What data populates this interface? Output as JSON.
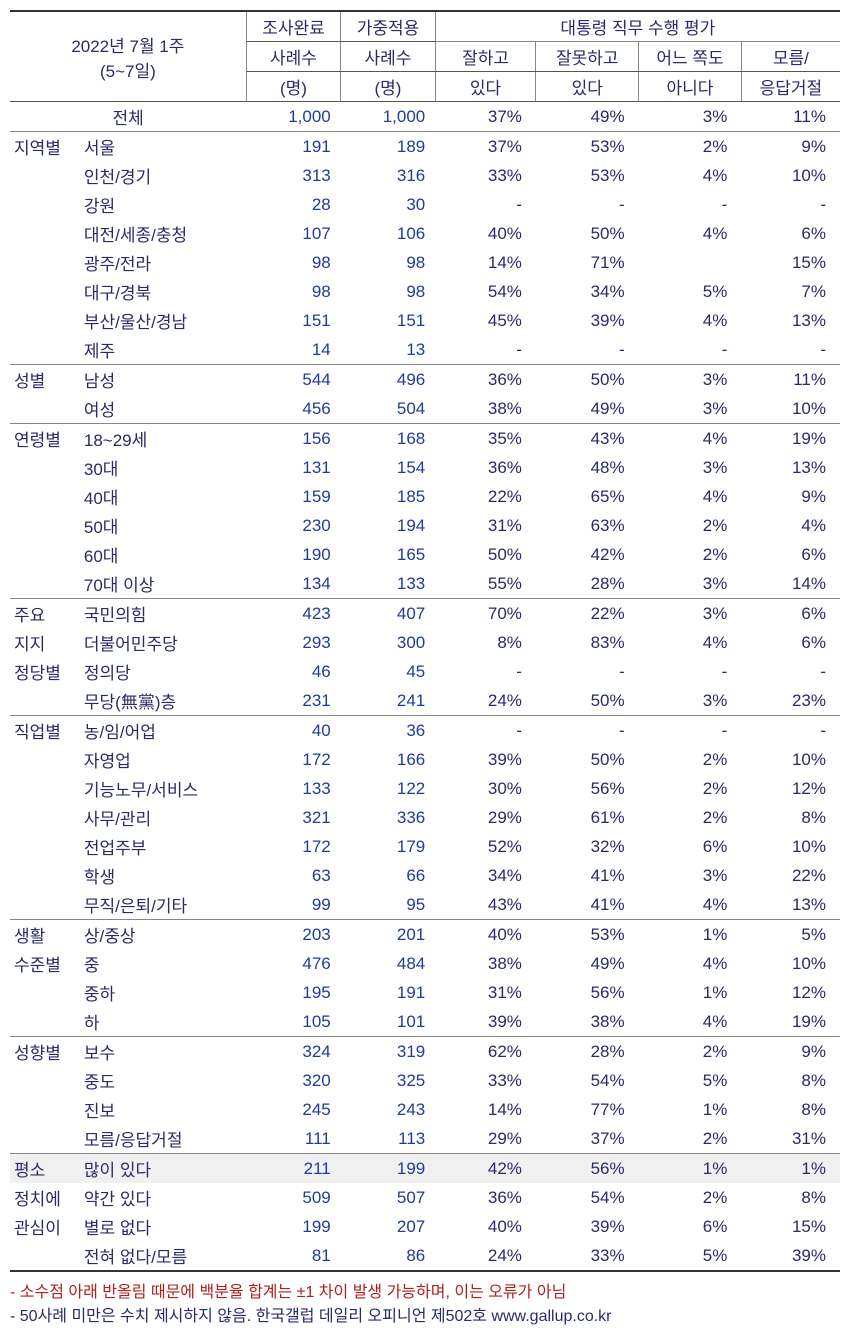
{
  "header": {
    "title_line1": "2022년 7월 1주",
    "title_line2": "(5~7일)",
    "col_n1_l1": "조사완료",
    "col_n1_l2": "사례수",
    "col_n1_l3": "(명)",
    "col_n2_l1": "가중적용",
    "col_n2_l2": "사례수",
    "col_n2_l3": "(명)",
    "pres_eval": "대통령 직무 수행 평가",
    "c1_l1": "잘하고",
    "c1_l2": "있다",
    "c2_l1": "잘못하고",
    "c2_l2": "있다",
    "c3_l1": "어느 쪽도",
    "c3_l2": "아니다",
    "c4_l1": "모름/",
    "c4_l2": "응답거절"
  },
  "total_label": "전체",
  "total": {
    "n1": "1,000",
    "n2": "1,000",
    "p1": "37%",
    "p2": "49%",
    "p3": "3%",
    "p4": "11%"
  },
  "sections": [
    {
      "group": "지역별",
      "rows": [
        {
          "label": "서울",
          "n1": "191",
          "n2": "189",
          "p1": "37%",
          "p2": "53%",
          "p3": "2%",
          "p4": "9%"
        },
        {
          "label": "인천/경기",
          "n1": "313",
          "n2": "316",
          "p1": "33%",
          "p2": "53%",
          "p3": "4%",
          "p4": "10%"
        },
        {
          "label": "강원",
          "n1": "28",
          "n2": "30",
          "p1": "-",
          "p2": "-",
          "p3": "-",
          "p4": "-"
        },
        {
          "label": "대전/세종/충청",
          "n1": "107",
          "n2": "106",
          "p1": "40%",
          "p2": "50%",
          "p3": "4%",
          "p4": "6%"
        },
        {
          "label": "광주/전라",
          "n1": "98",
          "n2": "98",
          "p1": "14%",
          "p2": "71%",
          "p3": "",
          "p4": "15%"
        },
        {
          "label": "대구/경북",
          "n1": "98",
          "n2": "98",
          "p1": "54%",
          "p2": "34%",
          "p3": "5%",
          "p4": "7%"
        },
        {
          "label": "부산/울산/경남",
          "n1": "151",
          "n2": "151",
          "p1": "45%",
          "p2": "39%",
          "p3": "4%",
          "p4": "13%"
        },
        {
          "label": "제주",
          "n1": "14",
          "n2": "13",
          "p1": "-",
          "p2": "-",
          "p3": "-",
          "p4": "-"
        }
      ]
    },
    {
      "group": "성별",
      "rows": [
        {
          "label": "남성",
          "n1": "544",
          "n2": "496",
          "p1": "36%",
          "p2": "50%",
          "p3": "3%",
          "p4": "11%"
        },
        {
          "label": "여성",
          "n1": "456",
          "n2": "504",
          "p1": "38%",
          "p2": "49%",
          "p3": "3%",
          "p4": "10%"
        }
      ]
    },
    {
      "group": "연령별",
      "rows": [
        {
          "label": "18~29세",
          "n1": "156",
          "n2": "168",
          "p1": "35%",
          "p2": "43%",
          "p3": "4%",
          "p4": "19%"
        },
        {
          "label": "30대",
          "n1": "131",
          "n2": "154",
          "p1": "36%",
          "p2": "48%",
          "p3": "3%",
          "p4": "13%"
        },
        {
          "label": "40대",
          "n1": "159",
          "n2": "185",
          "p1": "22%",
          "p2": "65%",
          "p3": "4%",
          "p4": "9%"
        },
        {
          "label": "50대",
          "n1": "230",
          "n2": "194",
          "p1": "31%",
          "p2": "63%",
          "p3": "2%",
          "p4": "4%"
        },
        {
          "label": "60대",
          "n1": "190",
          "n2": "165",
          "p1": "50%",
          "p2": "42%",
          "p3": "2%",
          "p4": "6%"
        },
        {
          "label": "70대 이상",
          "n1": "134",
          "n2": "133",
          "p1": "55%",
          "p2": "28%",
          "p3": "3%",
          "p4": "14%"
        }
      ]
    },
    {
      "group": "주요\n지지\n정당별",
      "group_lines": [
        "주요",
        "지지",
        "정당별"
      ],
      "rows": [
        {
          "label": "국민의힘",
          "n1": "423",
          "n2": "407",
          "p1": "70%",
          "p2": "22%",
          "p3": "3%",
          "p4": "6%"
        },
        {
          "label": "더불어민주당",
          "n1": "293",
          "n2": "300",
          "p1": "8%",
          "p2": "83%",
          "p3": "4%",
          "p4": "6%"
        },
        {
          "label": "정의당",
          "n1": "46",
          "n2": "45",
          "p1": "-",
          "p2": "-",
          "p3": "-",
          "p4": "-"
        },
        {
          "label": "무당(無黨)층",
          "n1": "231",
          "n2": "241",
          "p1": "24%",
          "p2": "50%",
          "p3": "3%",
          "p4": "23%"
        }
      ]
    },
    {
      "group": "직업별",
      "rows": [
        {
          "label": "농/임/어업",
          "n1": "40",
          "n2": "36",
          "p1": "-",
          "p2": "-",
          "p3": "-",
          "p4": "-"
        },
        {
          "label": "자영업",
          "n1": "172",
          "n2": "166",
          "p1": "39%",
          "p2": "50%",
          "p3": "2%",
          "p4": "10%"
        },
        {
          "label": "기능노무/서비스",
          "n1": "133",
          "n2": "122",
          "p1": "30%",
          "p2": "56%",
          "p3": "2%",
          "p4": "12%"
        },
        {
          "label": "사무/관리",
          "n1": "321",
          "n2": "336",
          "p1": "29%",
          "p2": "61%",
          "p3": "2%",
          "p4": "8%"
        },
        {
          "label": "전업주부",
          "n1": "172",
          "n2": "179",
          "p1": "52%",
          "p2": "32%",
          "p3": "6%",
          "p4": "10%"
        },
        {
          "label": "학생",
          "n1": "63",
          "n2": "66",
          "p1": "34%",
          "p2": "41%",
          "p3": "3%",
          "p4": "22%"
        },
        {
          "label": "무직/은퇴/기타",
          "n1": "99",
          "n2": "95",
          "p1": "43%",
          "p2": "41%",
          "p3": "4%",
          "p4": "13%"
        }
      ]
    },
    {
      "group": "생활\n수준별",
      "group_lines": [
        "생활",
        "수준별"
      ],
      "rows": [
        {
          "label": "상/중상",
          "n1": "203",
          "n2": "201",
          "p1": "40%",
          "p2": "53%",
          "p3": "1%",
          "p4": "5%"
        },
        {
          "label": "중",
          "n1": "476",
          "n2": "484",
          "p1": "38%",
          "p2": "49%",
          "p3": "4%",
          "p4": "10%"
        },
        {
          "label": "중하",
          "n1": "195",
          "n2": "191",
          "p1": "31%",
          "p2": "56%",
          "p3": "1%",
          "p4": "12%"
        },
        {
          "label": "하",
          "n1": "105",
          "n2": "101",
          "p1": "39%",
          "p2": "38%",
          "p3": "4%",
          "p4": "19%"
        }
      ]
    },
    {
      "group": "성향별",
      "rows": [
        {
          "label": "보수",
          "n1": "324",
          "n2": "319",
          "p1": "62%",
          "p2": "28%",
          "p3": "2%",
          "p4": "9%"
        },
        {
          "label": "중도",
          "n1": "320",
          "n2": "325",
          "p1": "33%",
          "p2": "54%",
          "p3": "5%",
          "p4": "8%"
        },
        {
          "label": "진보",
          "n1": "245",
          "n2": "243",
          "p1": "14%",
          "p2": "77%",
          "p3": "1%",
          "p4": "8%"
        },
        {
          "label": "모름/응답거절",
          "n1": "111",
          "n2": "113",
          "p1": "29%",
          "p2": "37%",
          "p3": "2%",
          "p4": "31%"
        }
      ]
    },
    {
      "group": "평소\n정치에\n관심이",
      "group_lines": [
        "평소",
        "정치에",
        "관심이"
      ],
      "rows": [
        {
          "label": "많이 있다",
          "n1": "211",
          "n2": "199",
          "p1": "42%",
          "p2": "56%",
          "p3": "1%",
          "p4": "1%",
          "shaded": true
        },
        {
          "label": "약간 있다",
          "n1": "509",
          "n2": "507",
          "p1": "36%",
          "p2": "54%",
          "p3": "2%",
          "p4": "8%"
        },
        {
          "label": "별로 없다",
          "n1": "199",
          "n2": "207",
          "p1": "40%",
          "p2": "39%",
          "p3": "6%",
          "p4": "15%"
        },
        {
          "label": "전혀 없다/모름",
          "n1": "81",
          "n2": "86",
          "p1": "24%",
          "p2": "33%",
          "p3": "5%",
          "p4": "39%"
        }
      ]
    }
  ],
  "footnotes": {
    "f1": "- 소수점 아래 반올림 때문에 백분율 합계는 ±1 차이 발생 가능하며, 이는 오류가 아님",
    "f2": "- 50사례 미만은 수치 제시하지 않음. 한국갤럽 데일리 오피니언 제502호 www.gallup.co.kr"
  },
  "colors": {
    "text_main": "#2a2a6a",
    "num_color": "#1f3c9c",
    "footnote1": "#b02020"
  },
  "colwidths": {
    "group": 70,
    "sub": 160,
    "n": 90,
    "p": 100
  }
}
